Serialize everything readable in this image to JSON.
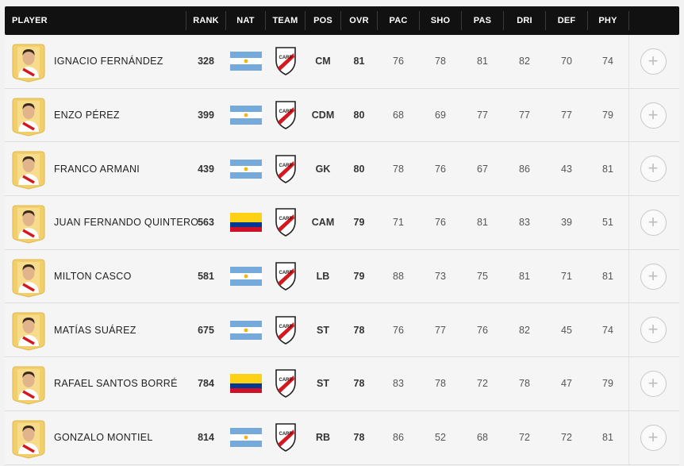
{
  "colors": {
    "header_bg": "#111111",
    "card_gold": "#f2cf6a",
    "river_red": "#d4181f",
    "argentina_blue": "#75aadb",
    "colombia_yellow": "#fcd116",
    "colombia_blue": "#003893",
    "colombia_red": "#ce1126"
  },
  "header": {
    "player": "PLAYER",
    "rank": "RANK",
    "nat": "NAT",
    "team": "TEAM",
    "pos": "POS",
    "ovr": "OVR",
    "pac": "PAC",
    "sho": "SHO",
    "pas": "PAS",
    "dri": "DRI",
    "def": "DEF",
    "phy": "PHY"
  },
  "players": [
    {
      "name": "IGNACIO FERNÁNDEZ",
      "rank": "328",
      "nat": "argentina-flag",
      "team": "river-plate-crest",
      "pos": "CM",
      "ovr": "81",
      "pac": "76",
      "sho": "78",
      "pas": "81",
      "dri": "82",
      "def": "70",
      "phy": "74",
      "add_icon": "plus-circle-icon",
      "add_label": "+"
    },
    {
      "name": "ENZO PÉREZ",
      "rank": "399",
      "nat": "argentina-flag",
      "team": "river-plate-crest",
      "pos": "CDM",
      "ovr": "80",
      "pac": "68",
      "sho": "69",
      "pas": "77",
      "dri": "77",
      "def": "77",
      "phy": "79",
      "add_icon": "plus-circle-icon",
      "add_label": "+"
    },
    {
      "name": "FRANCO ARMANI",
      "rank": "439",
      "nat": "argentina-flag",
      "team": "river-plate-crest",
      "pos": "GK",
      "ovr": "80",
      "pac": "78",
      "sho": "76",
      "pas": "67",
      "dri": "86",
      "def": "43",
      "phy": "81",
      "add_icon": "plus-circle-icon",
      "add_label": "+"
    },
    {
      "name": "JUAN FERNANDO QUINTERO",
      "rank": "563",
      "nat": "colombia-flag",
      "team": "river-plate-crest",
      "pos": "CAM",
      "ovr": "79",
      "pac": "71",
      "sho": "76",
      "pas": "81",
      "dri": "83",
      "def": "39",
      "phy": "51",
      "add_icon": "plus-circle-icon",
      "add_label": "+"
    },
    {
      "name": "MILTON CASCO",
      "rank": "581",
      "nat": "argentina-flag",
      "team": "river-plate-crest",
      "pos": "LB",
      "ovr": "79",
      "pac": "88",
      "sho": "73",
      "pas": "75",
      "dri": "81",
      "def": "71",
      "phy": "81",
      "add_icon": "plus-circle-icon",
      "add_label": "+"
    },
    {
      "name": "MATÍAS SUÁREZ",
      "rank": "675",
      "nat": "argentina-flag",
      "team": "river-plate-crest",
      "pos": "ST",
      "ovr": "78",
      "pac": "76",
      "sho": "77",
      "pas": "76",
      "dri": "82",
      "def": "45",
      "phy": "74",
      "add_icon": "plus-circle-icon",
      "add_label": "+"
    },
    {
      "name": "RAFAEL SANTOS BORRÉ",
      "rank": "784",
      "nat": "colombia-flag",
      "team": "river-plate-crest",
      "pos": "ST",
      "ovr": "78",
      "pac": "83",
      "sho": "78",
      "pas": "72",
      "dri": "78",
      "def": "47",
      "phy": "79",
      "add_icon": "plus-circle-icon",
      "add_label": "+"
    },
    {
      "name": "GONZALO MONTIEL",
      "rank": "814",
      "nat": "argentina-flag",
      "team": "river-plate-crest",
      "pos": "RB",
      "ovr": "78",
      "pac": "86",
      "sho": "52",
      "pas": "68",
      "dri": "72",
      "def": "72",
      "phy": "81",
      "add_icon": "plus-circle-icon",
      "add_label": "+"
    }
  ]
}
